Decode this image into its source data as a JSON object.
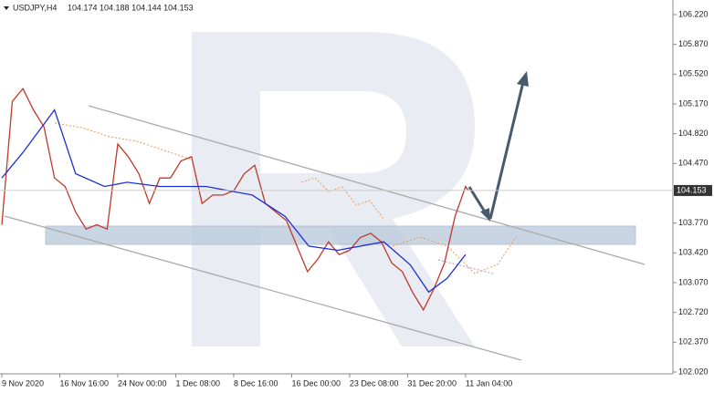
{
  "chart_data": {
    "type": "line",
    "title": "USDJPY,H4",
    "subtitle": "104.174 104.188 104.144 104.153",
    "last_price": 104.153,
    "series": [
      {
        "color": "#c0392b",
        "x": [
          0,
          8,
          16,
          24,
          32,
          40,
          48,
          56,
          64,
          72,
          80,
          88,
          96,
          104,
          112,
          120,
          128,
          136,
          144,
          152,
          160,
          168,
          176,
          184,
          192,
          200,
          208,
          216,
          224,
          232,
          240,
          248,
          256,
          264,
          272,
          280,
          288,
          296,
          304,
          312,
          320,
          328,
          336,
          344,
          352,
          354
        ],
        "values": [
          103.75,
          105.2,
          105.35,
          105.1,
          104.9,
          104.3,
          104.2,
          103.9,
          103.7,
          103.75,
          103.7,
          104.7,
          104.55,
          104.35,
          104.0,
          104.3,
          104.3,
          104.5,
          104.55,
          104.0,
          104.1,
          104.1,
          104.15,
          104.35,
          104.45,
          104.0,
          103.9,
          103.8,
          103.5,
          103.2,
          103.35,
          103.55,
          103.4,
          103.45,
          103.6,
          103.65,
          103.55,
          103.3,
          103.2,
          102.95,
          102.75,
          103.0,
          103.3,
          103.85,
          104.2,
          104.153
        ]
      },
      {
        "color": "#1f2fd6",
        "x": [
          0,
          16,
          40,
          56,
          78,
          95,
          120,
          155,
          190,
          215,
          233,
          255,
          290,
          310,
          324,
          338,
          352
        ],
        "values": [
          104.3,
          104.6,
          105.1,
          104.35,
          104.2,
          104.25,
          104.2,
          104.2,
          104.1,
          103.85,
          103.5,
          103.45,
          103.55,
          103.28,
          102.96,
          103.12,
          103.4
        ]
      }
    ],
    "xlim": [
      0,
      508
    ],
    "xticks": [
      {
        "value": 0,
        "label": "9 Nov 2020"
      },
      {
        "value": 44,
        "label": "16 Nov 16:00"
      },
      {
        "value": 88,
        "label": "24 Nov 00:00"
      },
      {
        "value": 132,
        "label": "1 Dec 08:00"
      },
      {
        "value": 176,
        "label": "8 Dec 16:00"
      },
      {
        "value": 220,
        "label": "16 Dec 00:00"
      },
      {
        "value": 264,
        "label": "23 Dec 08:00"
      },
      {
        "value": 308,
        "label": "31 Dec 20:00"
      },
      {
        "value": 352,
        "label": "11 Jan 04:00"
      }
    ],
    "ylim": [
      102.02,
      106.22
    ],
    "yticks": [
      {
        "value": 106.22,
        "label": "106.220"
      },
      {
        "value": 105.87,
        "label": "105.870"
      },
      {
        "value": 105.52,
        "label": "105.520"
      },
      {
        "value": 105.17,
        "label": "105.170"
      },
      {
        "value": 104.82,
        "label": "104.820"
      },
      {
        "value": 104.47,
        "label": "104.470"
      },
      {
        "value": 103.77,
        "label": "103.770"
      },
      {
        "value": 103.42,
        "label": "103.420"
      },
      {
        "value": 103.07,
        "label": "103.070"
      },
      {
        "value": 102.72,
        "label": "102.720"
      },
      {
        "value": 102.37,
        "label": "102.370"
      },
      {
        "value": 102.02,
        "label": "102.020"
      }
    ]
  }
}
